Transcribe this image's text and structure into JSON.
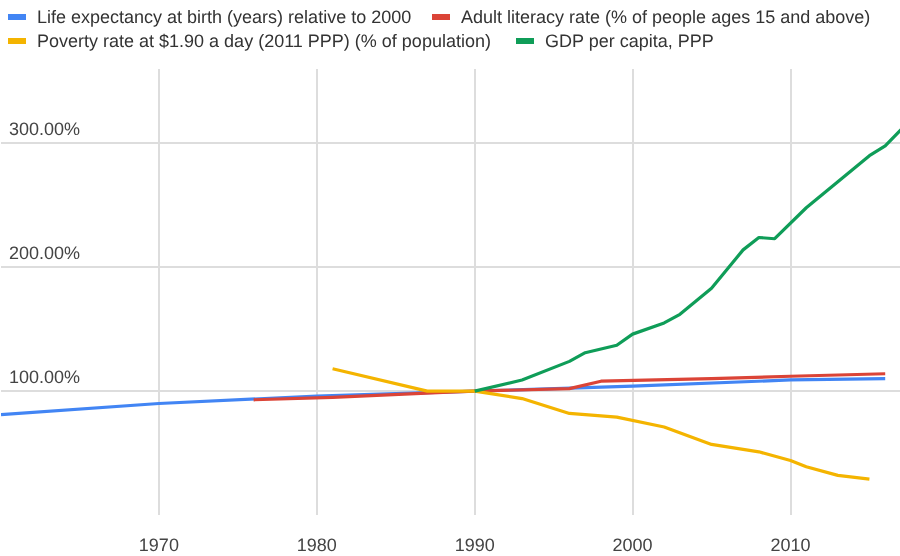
{
  "chart_data": {
    "type": "line",
    "xlim": [
      1960,
      2017
    ],
    "ylim": [
      0,
      360
    ],
    "xticks": [
      1970,
      1980,
      1990,
      2000,
      2010
    ],
    "yticks": [
      {
        "value": 100,
        "label": "100.00%"
      },
      {
        "value": 200,
        "label": "200.00%"
      },
      {
        "value": 300,
        "label": "300.00%"
      }
    ],
    "grid": true,
    "legend": "top",
    "marker": "none",
    "line_style": "solid",
    "series": [
      {
        "name": "Life expectancy at birth (years) relative to 2000",
        "color": "#4285f4",
        "x": [
          1960,
          1970,
          1980,
          1990,
          2000,
          2010,
          2016
        ],
        "values": [
          81,
          90,
          96,
          100,
          104,
          109,
          110
        ]
      },
      {
        "name": "Adult literacy rate (% of people ages 15 and above)",
        "color": "#db4437",
        "x": [
          1976,
          1981,
          1988,
          1990,
          1996,
          1998,
          2005,
          2010,
          2016
        ],
        "values": [
          93,
          95,
          99,
          100,
          102,
          108,
          110,
          112,
          114
        ]
      },
      {
        "name": "Poverty rate at $1.90 a day (2011 PPP) (% of population)",
        "color": "#f4b400",
        "x": [
          1981,
          1987,
          1990,
          1993,
          1996,
          1999,
          2002,
          2005,
          2008,
          2010,
          2011,
          2013,
          2015
        ],
        "values": [
          118,
          100,
          100,
          94,
          82,
          79,
          71,
          57,
          51,
          44,
          39,
          32,
          29
        ]
      },
      {
        "name": "GDP per capita, PPP",
        "color": "#0f9d58",
        "x": [
          1990,
          1993,
          1996,
          1997,
          1999,
          2000,
          2002,
          2003,
          2005,
          2007,
          2008,
          2009,
          2011,
          2013,
          2015,
          2016,
          2017
        ],
        "values": [
          100,
          109,
          124,
          131,
          137,
          146,
          155,
          162,
          183,
          214,
          224,
          223,
          248,
          269,
          290,
          298,
          311
        ]
      }
    ]
  }
}
